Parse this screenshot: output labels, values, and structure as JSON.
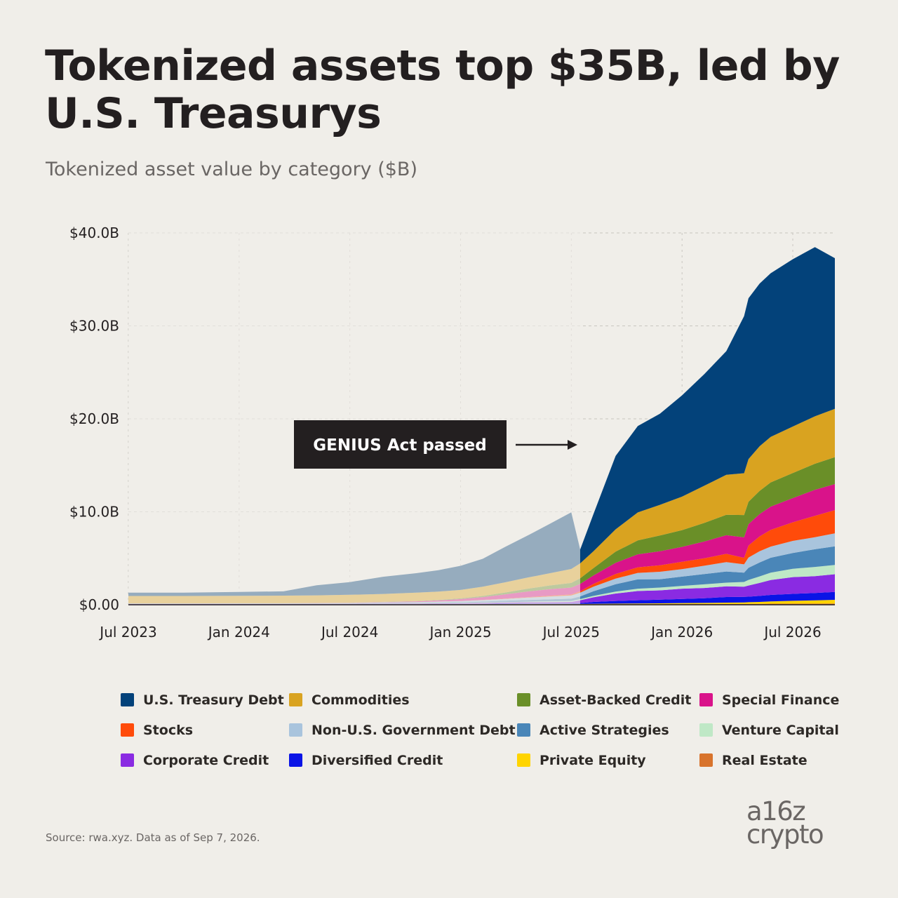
{
  "title": "Tokenized assets top $35B, led by U.S. Treasurys",
  "subtitle": "Tokenized asset value by category ($B)",
  "source": "Source: rwa.xyz. Data as of Sep 7, 2026.",
  "logo": {
    "line1": "a16z",
    "line2": "crypto"
  },
  "annotation": {
    "text": "GENIUS Act passed",
    "date": "Jul 2025"
  },
  "chart_data": {
    "type": "area",
    "stacked": true,
    "title": "Tokenized asset value by category ($B)",
    "ylim": [
      0,
      40
    ],
    "y_ticks": [
      {
        "value": 0,
        "label": "$0.00"
      },
      {
        "value": 10,
        "label": "$10.0B"
      },
      {
        "value": 20,
        "label": "$20.0B"
      },
      {
        "value": 30,
        "label": "$30.0B"
      },
      {
        "value": 40,
        "label": "$40.0B"
      }
    ],
    "x_ticks": [
      {
        "value": 2023.5,
        "label": "Jul 2023"
      },
      {
        "value": 2024.0,
        "label": "Jan 2024"
      },
      {
        "value": 2024.5,
        "label": "Jul 2024"
      },
      {
        "value": 2025.0,
        "label": "Jan 2025"
      },
      {
        "value": 2025.5,
        "label": "Jul 2025"
      },
      {
        "value": 2026.0,
        "label": "Jan 2026"
      },
      {
        "value": 2026.5,
        "label": "Jul 2026"
      }
    ],
    "xlim": [
      2023.5,
      2026.69
    ],
    "highlight_start": 2025.54,
    "grid": true,
    "legend_position": "bottom",
    "x": [
      2023.5,
      2023.75,
      2024.0,
      2024.2,
      2024.35,
      2024.5,
      2024.65,
      2024.8,
      2024.9,
      2025.0,
      2025.1,
      2025.2,
      2025.3,
      2025.4,
      2025.5,
      2025.54,
      2025.6,
      2025.7,
      2025.8,
      2025.9,
      2026.0,
      2026.1,
      2026.2,
      2026.28,
      2026.3,
      2026.35,
      2026.4,
      2026.5,
      2026.6,
      2026.69
    ],
    "series": [
      {
        "name": "Real Estate",
        "color": "#d8732c",
        "values": [
          0.02,
          0.02,
          0.02,
          0.02,
          0.02,
          0.02,
          0.03,
          0.03,
          0.03,
          0.03,
          0.04,
          0.04,
          0.05,
          0.05,
          0.05,
          0.05,
          0.06,
          0.06,
          0.07,
          0.07,
          0.08,
          0.08,
          0.09,
          0.1,
          0.1,
          0.1,
          0.11,
          0.12,
          0.12,
          0.13
        ]
      },
      {
        "name": "Private Equity",
        "color": "#ffd400",
        "values": [
          0.01,
          0.01,
          0.01,
          0.01,
          0.01,
          0.01,
          0.01,
          0.02,
          0.02,
          0.02,
          0.02,
          0.03,
          0.03,
          0.03,
          0.03,
          0.03,
          0.04,
          0.05,
          0.06,
          0.08,
          0.1,
          0.12,
          0.14,
          0.15,
          0.17,
          0.2,
          0.25,
          0.3,
          0.35,
          0.4
        ]
      },
      {
        "name": "Diversified Credit",
        "color": "#0a14e6",
        "values": [
          0.01,
          0.01,
          0.01,
          0.01,
          0.01,
          0.01,
          0.02,
          0.02,
          0.03,
          0.03,
          0.04,
          0.05,
          0.05,
          0.06,
          0.06,
          0.1,
          0.2,
          0.3,
          0.35,
          0.4,
          0.45,
          0.5,
          0.6,
          0.6,
          0.6,
          0.65,
          0.7,
          0.75,
          0.8,
          0.85
        ]
      },
      {
        "name": "Corporate Credit",
        "color": "#8a2be2",
        "values": [
          0.05,
          0.05,
          0.05,
          0.05,
          0.05,
          0.05,
          0.06,
          0.06,
          0.07,
          0.08,
          0.1,
          0.12,
          0.14,
          0.15,
          0.16,
          0.3,
          0.5,
          0.8,
          1.0,
          1.0,
          1.1,
          1.1,
          1.15,
          1.1,
          1.2,
          1.4,
          1.6,
          1.8,
          1.8,
          1.9
        ]
      },
      {
        "name": "Venture Capital",
        "color": "#bfe8c6",
        "values": [
          0.01,
          0.01,
          0.01,
          0.01,
          0.01,
          0.01,
          0.02,
          0.02,
          0.03,
          0.03,
          0.04,
          0.05,
          0.06,
          0.08,
          0.1,
          0.12,
          0.15,
          0.2,
          0.25,
          0.3,
          0.3,
          0.4,
          0.4,
          0.5,
          0.6,
          0.7,
          0.8,
          0.9,
          1.0,
          1.0
        ]
      },
      {
        "name": "Active Strategies",
        "color": "#4a86b8",
        "values": [
          0.02,
          0.02,
          0.02,
          0.02,
          0.03,
          0.03,
          0.04,
          0.05,
          0.06,
          0.08,
          0.1,
          0.14,
          0.18,
          0.22,
          0.25,
          0.3,
          0.5,
          0.8,
          1.0,
          0.9,
          1.0,
          1.1,
          1.2,
          1.0,
          1.3,
          1.5,
          1.6,
          1.7,
          1.9,
          2.0
        ]
      },
      {
        "name": "Non-U.S. Government Debt",
        "color": "#a9c4dd",
        "values": [
          0.02,
          0.02,
          0.03,
          0.03,
          0.04,
          0.05,
          0.06,
          0.08,
          0.1,
          0.12,
          0.16,
          0.2,
          0.25,
          0.3,
          0.35,
          0.4,
          0.5,
          0.6,
          0.7,
          0.8,
          0.8,
          0.9,
          1.0,
          0.9,
          1.1,
          1.2,
          1.2,
          1.3,
          1.3,
          1.4
        ]
      },
      {
        "name": "Stocks",
        "color": "#ff4b0a",
        "values": [
          0.0,
          0.0,
          0.0,
          0.0,
          0.0,
          0.0,
          0.0,
          0.01,
          0.01,
          0.02,
          0.02,
          0.03,
          0.05,
          0.08,
          0.1,
          0.15,
          0.3,
          0.5,
          0.6,
          0.7,
          0.8,
          0.8,
          0.9,
          0.7,
          1.3,
          1.6,
          1.8,
          2.0,
          2.3,
          2.5
        ]
      },
      {
        "name": "Special Finance",
        "color": "#d9138a",
        "values": [
          0.0,
          0.0,
          0.01,
          0.01,
          0.02,
          0.03,
          0.05,
          0.08,
          0.12,
          0.2,
          0.3,
          0.45,
          0.6,
          0.7,
          0.75,
          0.8,
          0.9,
          1.2,
          1.4,
          1.5,
          1.6,
          1.8,
          2.0,
          2.2,
          2.3,
          2.4,
          2.5,
          2.6,
          2.8,
          2.8
        ]
      },
      {
        "name": "Asset-Backed Credit",
        "color": "#6a8f28",
        "values": [
          0.0,
          0.0,
          0.0,
          0.0,
          0.0,
          0.01,
          0.02,
          0.03,
          0.05,
          0.08,
          0.12,
          0.2,
          0.3,
          0.4,
          0.5,
          0.6,
          0.8,
          1.2,
          1.5,
          1.7,
          1.8,
          2.0,
          2.2,
          2.4,
          2.4,
          2.5,
          2.6,
          2.7,
          2.8,
          2.9
        ]
      },
      {
        "name": "Commodities",
        "color": "#d9a320",
        "values": [
          0.8,
          0.8,
          0.8,
          0.82,
          0.82,
          0.85,
          0.85,
          0.9,
          0.9,
          0.9,
          1.0,
          1.1,
          1.2,
          1.3,
          1.5,
          1.6,
          1.8,
          2.4,
          3.0,
          3.3,
          3.6,
          4.0,
          4.3,
          4.5,
          4.6,
          4.8,
          4.9,
          5.0,
          5.1,
          5.2
        ]
      },
      {
        "name": "U.S. Treasury Debt",
        "color": "#03427a",
        "values": [
          0.36,
          0.36,
          0.42,
          0.46,
          1.08,
          1.37,
          1.85,
          2.1,
          2.3,
          2.6,
          3.0,
          3.8,
          4.5,
          5.3,
          6.1,
          1.5,
          4.0,
          7.9,
          9.3,
          9.8,
          10.9,
          12.0,
          13.3,
          16.9,
          17.3,
          17.5,
          17.6,
          18.0,
          18.2,
          16.2
        ]
      }
    ]
  },
  "legend": [
    {
      "label": "U.S. Treasury Debt",
      "color": "#03427a"
    },
    {
      "label": "Commodities",
      "color": "#d9a320"
    },
    {
      "label": "Asset-Backed Credit",
      "color": "#6a8f28"
    },
    {
      "label": "Special Finance",
      "color": "#d9138a"
    },
    {
      "label": "Stocks",
      "color": "#ff4b0a"
    },
    {
      "label": "Non-U.S. Government Debt",
      "color": "#a9c4dd"
    },
    {
      "label": "Active Strategies",
      "color": "#4a86b8"
    },
    {
      "label": "Venture Capital",
      "color": "#bfe8c6"
    },
    {
      "label": "Corporate Credit",
      "color": "#8a2be2"
    },
    {
      "label": "Diversified Credit",
      "color": "#0a14e6"
    },
    {
      "label": "Private Equity",
      "color": "#ffd400"
    },
    {
      "label": "Real Estate",
      "color": "#d8732c"
    }
  ]
}
